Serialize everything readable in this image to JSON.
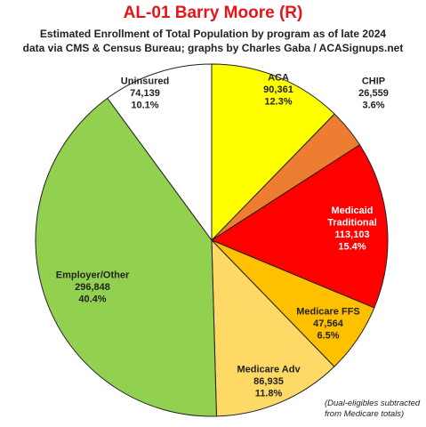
{
  "chart_data": {
    "type": "pie",
    "title": "AL-01 Barry Moore (R)",
    "subtitle_lines": [
      "Estimated Enrollment of Total Population by program as of late 2024",
      "data via CMS & Census Bureau; graphs by Charles Gaba / ACASignups.net"
    ],
    "start_angle_deg": 0,
    "direction": "clockwise",
    "slices": [
      {
        "label": [
          "ACA"
        ],
        "value": 90361,
        "value_text": "90,361",
        "percent": "12.3%",
        "color": "#ffff00",
        "text_color": "#222222"
      },
      {
        "label": [
          "CHIP"
        ],
        "value": 26559,
        "value_text": "26,559",
        "percent": "3.6%",
        "color": "#ed7d31",
        "text_color": "#222222"
      },
      {
        "label": [
          "Medicaid",
          "Traditional"
        ],
        "value": 113103,
        "value_text": "113,103",
        "percent": "15.4%",
        "color": "#ff0000",
        "text_color": "#ffffff"
      },
      {
        "label": [
          "Medicare FFS"
        ],
        "value": 47564,
        "value_text": "47,564",
        "percent": "6.5%",
        "color": "#ffc000",
        "text_color": "#222222"
      },
      {
        "label": [
          "Medicare Adv"
        ],
        "value": 86935,
        "value_text": "86,935",
        "percent": "11.8%",
        "color": "#ffd966",
        "text_color": "#222222"
      },
      {
        "label": [
          "Employer/Other"
        ],
        "value": 296848,
        "value_text": "296,848",
        "percent": "40.4%",
        "color": "#92d050",
        "text_color": "#222222"
      },
      {
        "label": [
          "Uninsured"
        ],
        "value": 74139,
        "value_text": "74,139",
        "percent": "10.1%",
        "color": "#ffffff",
        "text_color": "#222222"
      }
    ],
    "note_lines": [
      "(Dual-eligibles subtracted",
      "from Medicare totals)"
    ]
  }
}
